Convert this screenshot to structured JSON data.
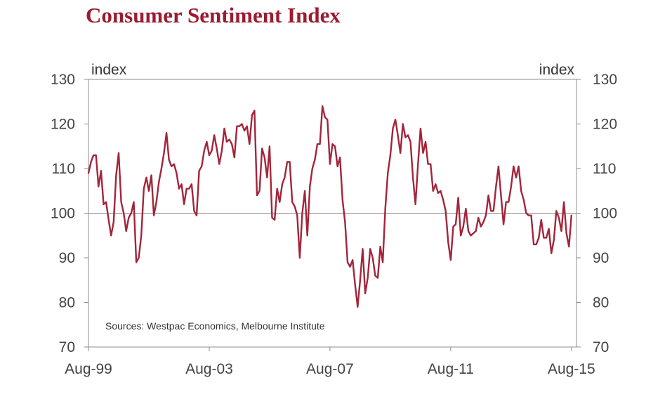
{
  "chart_data": {
    "type": "line",
    "title": "Consumer Sentiment Index",
    "ylabel_left": "index",
    "ylabel_right": "index",
    "ylim": [
      70,
      130
    ],
    "yticks": [
      70,
      80,
      90,
      100,
      110,
      120,
      130
    ],
    "xlim": [
      "1999-08",
      "2015-10"
    ],
    "xticks": [
      {
        "label": "Aug-99",
        "date": "1999-08"
      },
      {
        "label": "Aug-03",
        "date": "2003-08"
      },
      {
        "label": "Aug-07",
        "date": "2007-08"
      },
      {
        "label": "Aug-11",
        "date": "2011-08"
      },
      {
        "label": "Aug-15",
        "date": "2015-08"
      }
    ],
    "reference_line": 100,
    "annotation": "Sources: Westpac Economics, Melbourne Institute",
    "line_color": "#a3253a",
    "grid": false,
    "series": [
      {
        "name": "",
        "points": [
          [
            "1999-08",
            109.0
          ],
          [
            "1999-09",
            111.5
          ],
          [
            "1999-10",
            113.0
          ],
          [
            "1999-11",
            113.0
          ],
          [
            "1999-12",
            106.0
          ],
          [
            "2000-01",
            109.5
          ],
          [
            "2000-02",
            102.0
          ],
          [
            "2000-03",
            102.5
          ],
          [
            "2000-04",
            98.5
          ],
          [
            "2000-05",
            95.0
          ],
          [
            "2000-06",
            98.0
          ],
          [
            "2000-07",
            108.5
          ],
          [
            "2000-08",
            113.5
          ],
          [
            "2000-09",
            102.5
          ],
          [
            "2000-10",
            100.0
          ],
          [
            "2000-11",
            96.0
          ],
          [
            "2000-12",
            99.0
          ],
          [
            "2001-01",
            100.0
          ],
          [
            "2001-02",
            102.5
          ],
          [
            "2001-03",
            89.0
          ],
          [
            "2001-04",
            90.0
          ],
          [
            "2001-05",
            95.0
          ],
          [
            "2001-06",
            105.5
          ],
          [
            "2001-07",
            108.0
          ],
          [
            "2001-08",
            105.0
          ],
          [
            "2001-09",
            108.5
          ],
          [
            "2001-10",
            99.5
          ],
          [
            "2001-11",
            102.5
          ],
          [
            "2001-12",
            107.0
          ],
          [
            "2002-01",
            110.0
          ],
          [
            "2002-02",
            113.5
          ],
          [
            "2002-03",
            118.0
          ],
          [
            "2002-04",
            112.0
          ],
          [
            "2002-05",
            110.5
          ],
          [
            "2002-06",
            111.0
          ],
          [
            "2002-07",
            109.0
          ],
          [
            "2002-08",
            105.5
          ],
          [
            "2002-09",
            106.5
          ],
          [
            "2002-10",
            102.0
          ],
          [
            "2002-11",
            105.5
          ],
          [
            "2002-12",
            105.5
          ],
          [
            "2003-01",
            106.5
          ],
          [
            "2003-02",
            100.5
          ],
          [
            "2003-03",
            99.5
          ],
          [
            "2003-04",
            109.5
          ],
          [
            "2003-05",
            110.5
          ],
          [
            "2003-06",
            114.0
          ],
          [
            "2003-07",
            116.0
          ],
          [
            "2003-08",
            113.0
          ],
          [
            "2003-09",
            114.0
          ],
          [
            "2003-10",
            117.5
          ],
          [
            "2003-11",
            114.5
          ],
          [
            "2003-12",
            111.0
          ],
          [
            "2004-01",
            114.0
          ],
          [
            "2004-02",
            119.0
          ],
          [
            "2004-03",
            116.0
          ],
          [
            "2004-04",
            116.5
          ],
          [
            "2004-05",
            115.5
          ],
          [
            "2004-06",
            112.5
          ],
          [
            "2004-07",
            119.5
          ],
          [
            "2004-08",
            119.5
          ],
          [
            "2004-09",
            120.0
          ],
          [
            "2004-10",
            118.5
          ],
          [
            "2004-11",
            119.5
          ],
          [
            "2004-12",
            115.5
          ],
          [
            "2005-01",
            122.0
          ],
          [
            "2005-02",
            123.0
          ],
          [
            "2005-03",
            104.0
          ],
          [
            "2005-04",
            105.0
          ],
          [
            "2005-05",
            114.5
          ],
          [
            "2005-06",
            112.5
          ],
          [
            "2005-07",
            108.0
          ],
          [
            "2005-08",
            115.0
          ],
          [
            "2005-09",
            99.0
          ],
          [
            "2005-10",
            98.5
          ],
          [
            "2005-11",
            105.5
          ],
          [
            "2005-12",
            102.5
          ],
          [
            "2006-01",
            106.5
          ],
          [
            "2006-02",
            108.0
          ],
          [
            "2006-03",
            111.5
          ],
          [
            "2006-04",
            111.5
          ],
          [
            "2006-05",
            102.5
          ],
          [
            "2006-06",
            101.5
          ],
          [
            "2006-07",
            99.5
          ],
          [
            "2006-08",
            90.0
          ],
          [
            "2006-09",
            100.0
          ],
          [
            "2006-10",
            105.0
          ],
          [
            "2006-11",
            95.0
          ],
          [
            "2006-12",
            106.0
          ],
          [
            "2007-01",
            110.0
          ],
          [
            "2007-02",
            112.0
          ],
          [
            "2007-03",
            115.5
          ],
          [
            "2007-04",
            115.5
          ],
          [
            "2007-05",
            124.0
          ],
          [
            "2007-06",
            121.5
          ],
          [
            "2007-07",
            121.0
          ],
          [
            "2007-08",
            111.0
          ],
          [
            "2007-09",
            115.5
          ],
          [
            "2007-10",
            115.0
          ],
          [
            "2007-11",
            110.5
          ],
          [
            "2007-12",
            112.5
          ],
          [
            "2008-01",
            103.0
          ],
          [
            "2008-02",
            98.0
          ],
          [
            "2008-03",
            89.0
          ],
          [
            "2008-04",
            88.0
          ],
          [
            "2008-05",
            89.5
          ],
          [
            "2008-06",
            84.0
          ],
          [
            "2008-07",
            79.0
          ],
          [
            "2008-08",
            85.0
          ],
          [
            "2008-09",
            92.0
          ],
          [
            "2008-10",
            82.0
          ],
          [
            "2008-11",
            85.5
          ],
          [
            "2008-12",
            92.0
          ],
          [
            "2009-01",
            90.0
          ],
          [
            "2009-02",
            86.0
          ],
          [
            "2009-03",
            85.5
          ],
          [
            "2009-04",
            92.5
          ],
          [
            "2009-05",
            89.0
          ],
          [
            "2009-06",
            101.0
          ],
          [
            "2009-07",
            109.0
          ],
          [
            "2009-08",
            113.0
          ],
          [
            "2009-09",
            119.0
          ],
          [
            "2009-10",
            121.0
          ],
          [
            "2009-11",
            117.5
          ],
          [
            "2009-12",
            113.5
          ],
          [
            "2010-01",
            120.0
          ],
          [
            "2010-02",
            117.0
          ],
          [
            "2010-03",
            117.5
          ],
          [
            "2010-04",
            116.0
          ],
          [
            "2010-05",
            108.0
          ],
          [
            "2010-06",
            102.0
          ],
          [
            "2010-07",
            111.0
          ],
          [
            "2010-08",
            119.0
          ],
          [
            "2010-09",
            113.5
          ],
          [
            "2010-10",
            116.0
          ],
          [
            "2010-11",
            111.0
          ],
          [
            "2010-12",
            111.0
          ],
          [
            "2011-01",
            105.0
          ],
          [
            "2011-02",
            106.5
          ],
          [
            "2011-03",
            104.5
          ],
          [
            "2011-04",
            105.0
          ],
          [
            "2011-05",
            103.0
          ],
          [
            "2011-06",
            100.5
          ],
          [
            "2011-07",
            93.5
          ],
          [
            "2011-08",
            89.5
          ],
          [
            "2011-09",
            97.0
          ],
          [
            "2011-10",
            97.5
          ],
          [
            "2011-11",
            103.5
          ],
          [
            "2011-12",
            95.0
          ],
          [
            "2012-01",
            97.0
          ],
          [
            "2012-02",
            101.0
          ],
          [
            "2012-03",
            96.0
          ],
          [
            "2012-04",
            95.0
          ],
          [
            "2012-05",
            95.5
          ],
          [
            "2012-06",
            96.0
          ],
          [
            "2012-07",
            99.0
          ],
          [
            "2012-08",
            97.0
          ],
          [
            "2012-09",
            98.0
          ],
          [
            "2012-10",
            99.5
          ],
          [
            "2012-11",
            104.0
          ],
          [
            "2012-12",
            100.5
          ],
          [
            "2013-01",
            100.5
          ],
          [
            "2013-02",
            106.0
          ],
          [
            "2013-03",
            110.5
          ],
          [
            "2013-04",
            104.0
          ],
          [
            "2013-05",
            97.5
          ],
          [
            "2013-06",
            102.5
          ],
          [
            "2013-07",
            102.5
          ],
          [
            "2013-08",
            106.0
          ],
          [
            "2013-09",
            110.5
          ],
          [
            "2013-10",
            108.0
          ],
          [
            "2013-11",
            110.5
          ],
          [
            "2013-12",
            105.0
          ],
          [
            "2014-01",
            103.0
          ],
          [
            "2014-02",
            100.0
          ],
          [
            "2014-03",
            99.5
          ],
          [
            "2014-04",
            99.5
          ],
          [
            "2014-05",
            93.0
          ],
          [
            "2014-06",
            93.0
          ],
          [
            "2014-07",
            94.5
          ],
          [
            "2014-08",
            98.5
          ],
          [
            "2014-09",
            94.5
          ],
          [
            "2014-10",
            94.5
          ],
          [
            "2014-11",
            96.5
          ],
          [
            "2014-12",
            91.0
          ],
          [
            "2015-01",
            94.0
          ],
          [
            "2015-02",
            100.5
          ],
          [
            "2015-03",
            99.0
          ],
          [
            "2015-04",
            96.0
          ],
          [
            "2015-05",
            102.5
          ],
          [
            "2015-06",
            95.5
          ],
          [
            "2015-07",
            92.5
          ],
          [
            "2015-08",
            99.5
          ]
        ]
      }
    ]
  }
}
